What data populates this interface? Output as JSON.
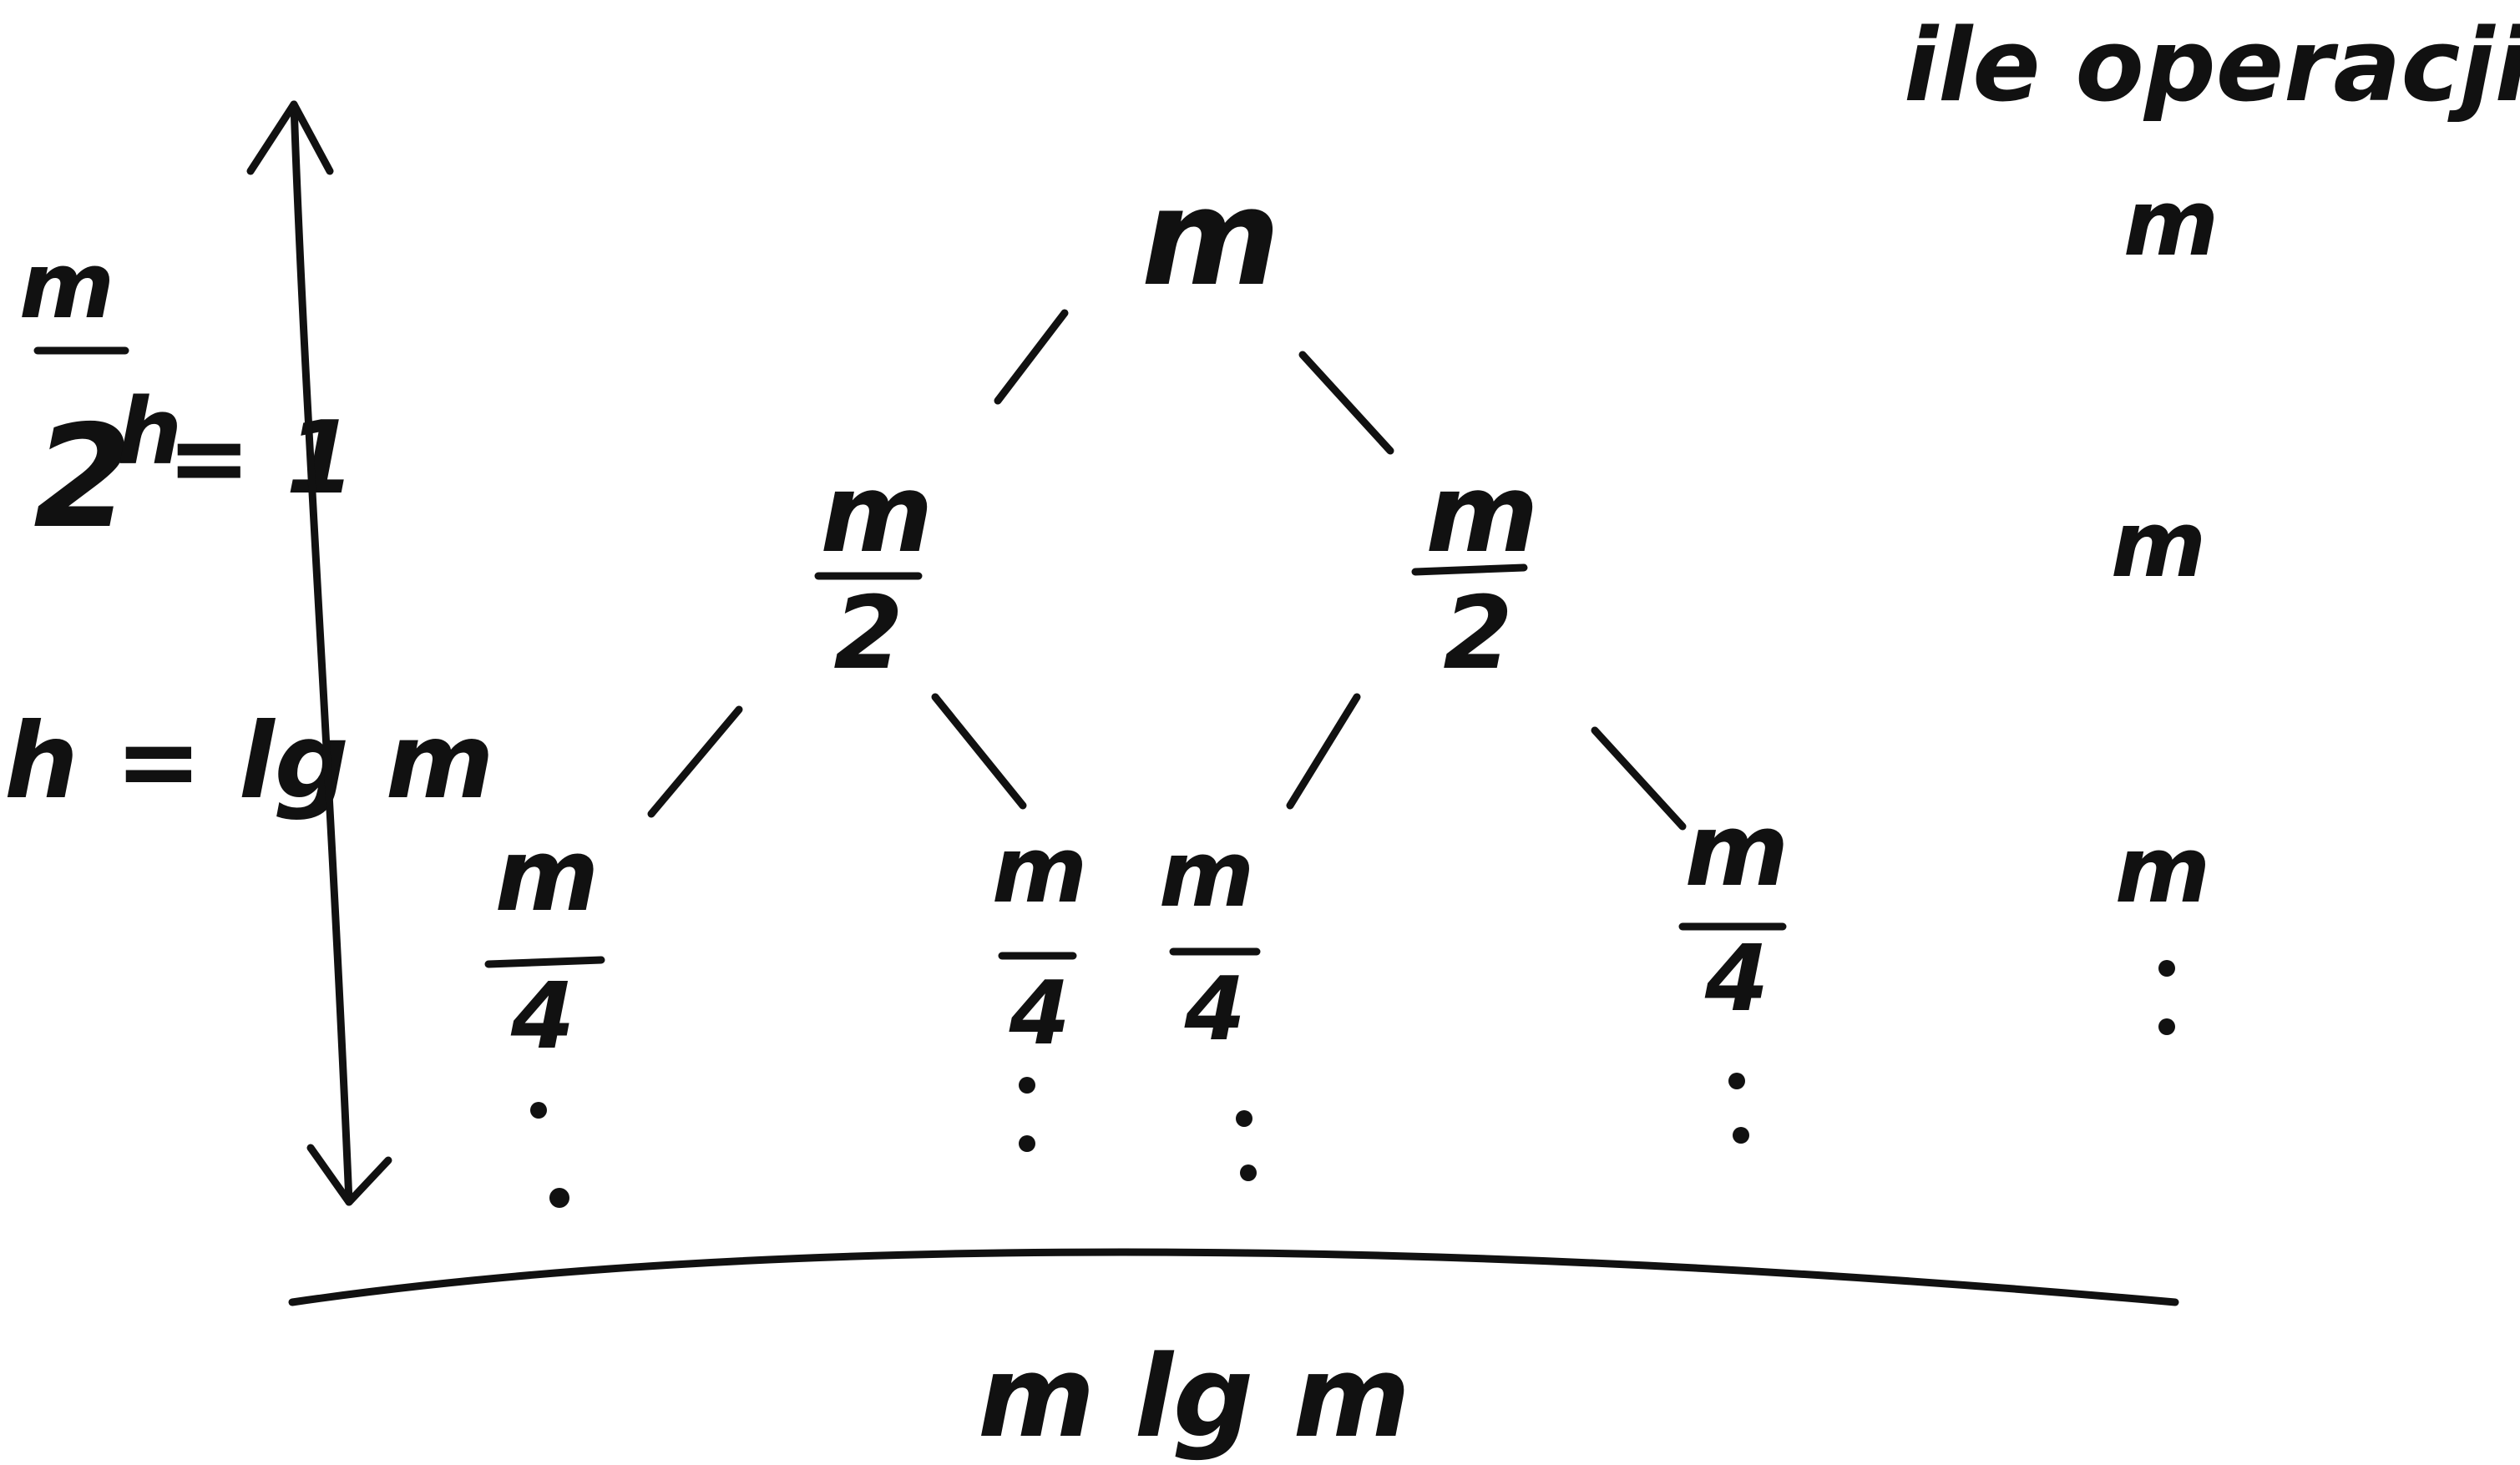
{
  "diagram": {
    "title": "ile operacji",
    "height_relation": {
      "fraction_numerator": "m",
      "fraction_denominator": "2",
      "exponent": "h",
      "equals_one": "= 1",
      "result": "h = lg m"
    },
    "tree": {
      "root": {
        "label": "m"
      },
      "level1": [
        {
          "numerator": "m",
          "denominator": "2"
        },
        {
          "numerator": "m",
          "denominator": "2"
        }
      ],
      "level2": [
        {
          "numerator": "m",
          "denominator": "4"
        },
        {
          "numerator": "m",
          "denominator": "4"
        },
        {
          "numerator": "m",
          "denominator": "4"
        },
        {
          "numerator": "m",
          "denominator": "4"
        }
      ]
    },
    "operations_per_level": [
      "m",
      "m",
      "m"
    ],
    "total": "m lg m"
  },
  "colors": {
    "ink": "#111111",
    "paper": "#ffffff"
  }
}
